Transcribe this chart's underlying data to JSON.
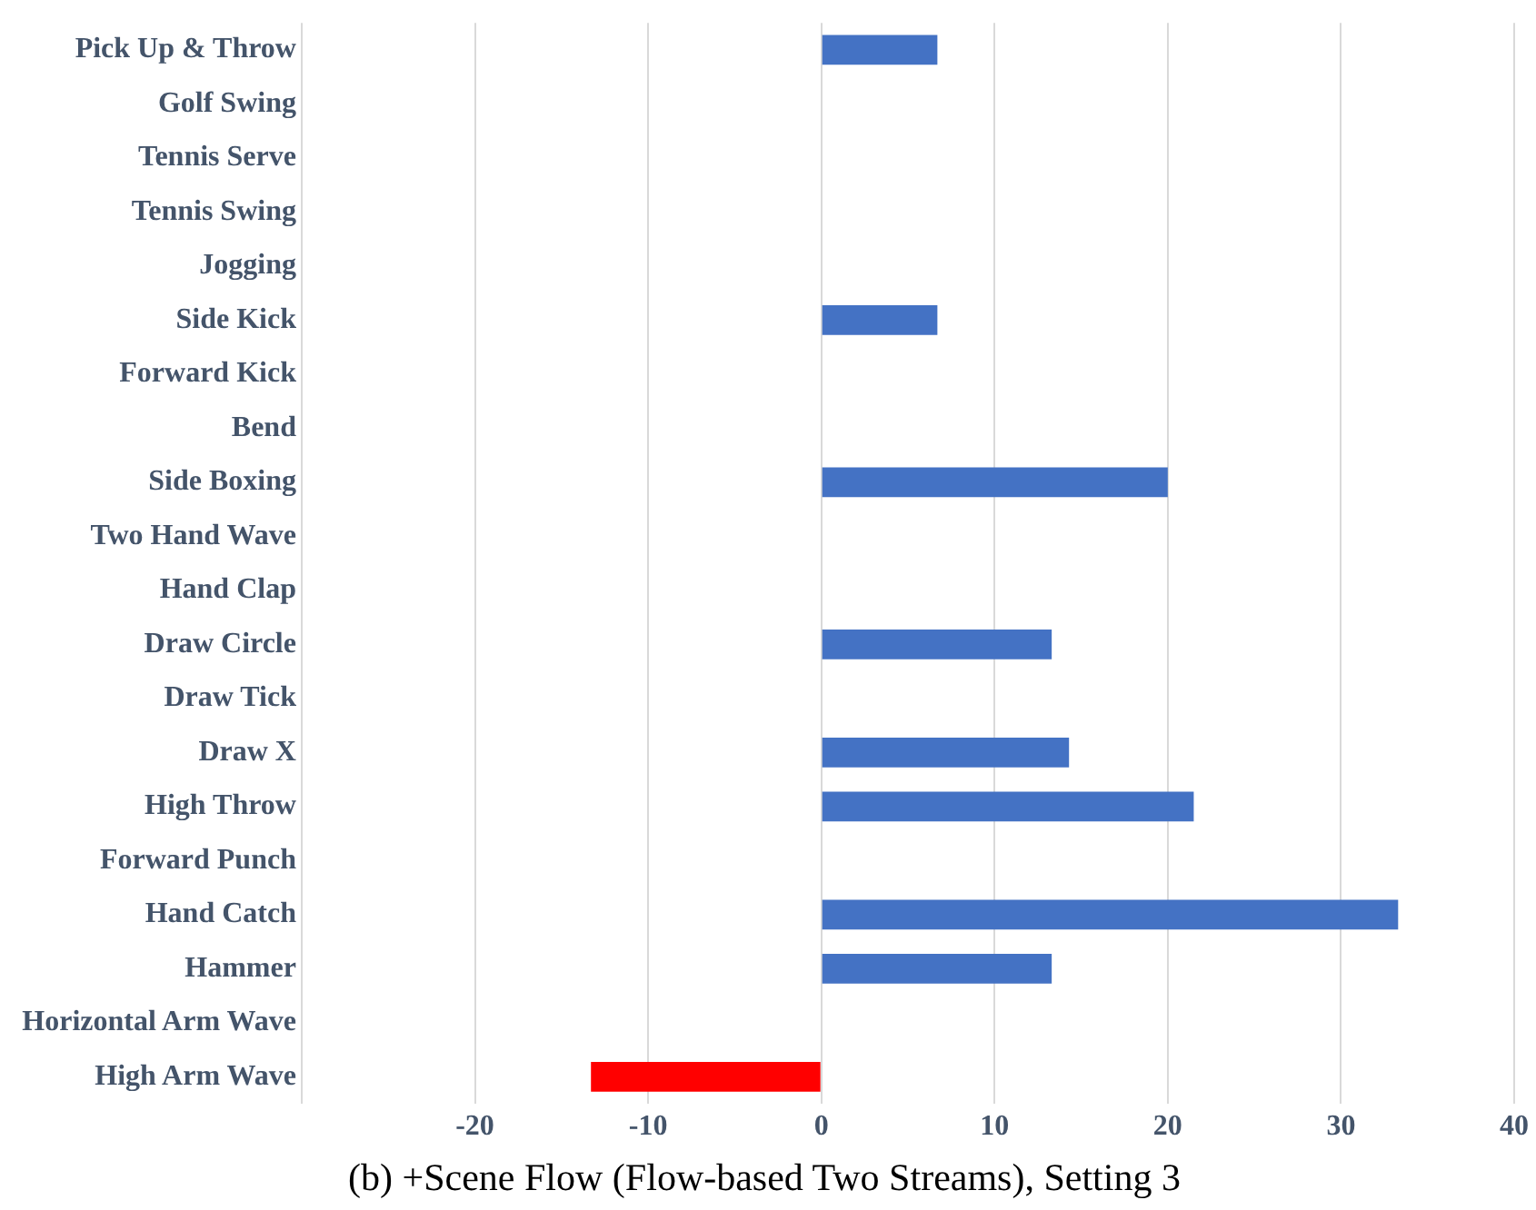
{
  "chart_data": {
    "type": "bar",
    "orientation": "horizontal",
    "title": "(b) +Scene Flow (Flow-based Two Streams), Setting 3",
    "categories": [
      "Pick Up & Throw",
      "Golf Swing",
      "Tennis Serve",
      "Tennis Swing",
      "Jogging",
      "Side Kick",
      "Forward Kick",
      "Bend",
      "Side Boxing",
      "Two Hand Wave",
      "Hand Clap",
      "Draw Circle",
      "Draw Tick",
      "Draw X",
      "High Throw",
      "Forward Punch",
      "Hand Catch",
      "Hammer",
      "Horizontal Arm Wave",
      "High Arm Wave"
    ],
    "values": [
      6.7,
      0,
      0,
      0,
      0,
      6.7,
      0,
      0,
      20,
      0,
      0,
      13.3,
      0,
      14.3,
      21.5,
      0,
      33.3,
      13.3,
      0,
      -13.3
    ],
    "colors": [
      "#4472c4",
      "#4472c4",
      "#4472c4",
      "#4472c4",
      "#4472c4",
      "#4472c4",
      "#4472c4",
      "#4472c4",
      "#4472c4",
      "#4472c4",
      "#4472c4",
      "#4472c4",
      "#4472c4",
      "#4472c4",
      "#4472c4",
      "#4472c4",
      "#4472c4",
      "#4472c4",
      "#4472c4",
      "#ff0000"
    ],
    "xlim": [
      -30,
      40
    ],
    "xticks": [
      {
        "value": -30,
        "label": null
      },
      -20,
      -10,
      0,
      10,
      20,
      30,
      40
    ],
    "grid": "x",
    "legend": false
  }
}
